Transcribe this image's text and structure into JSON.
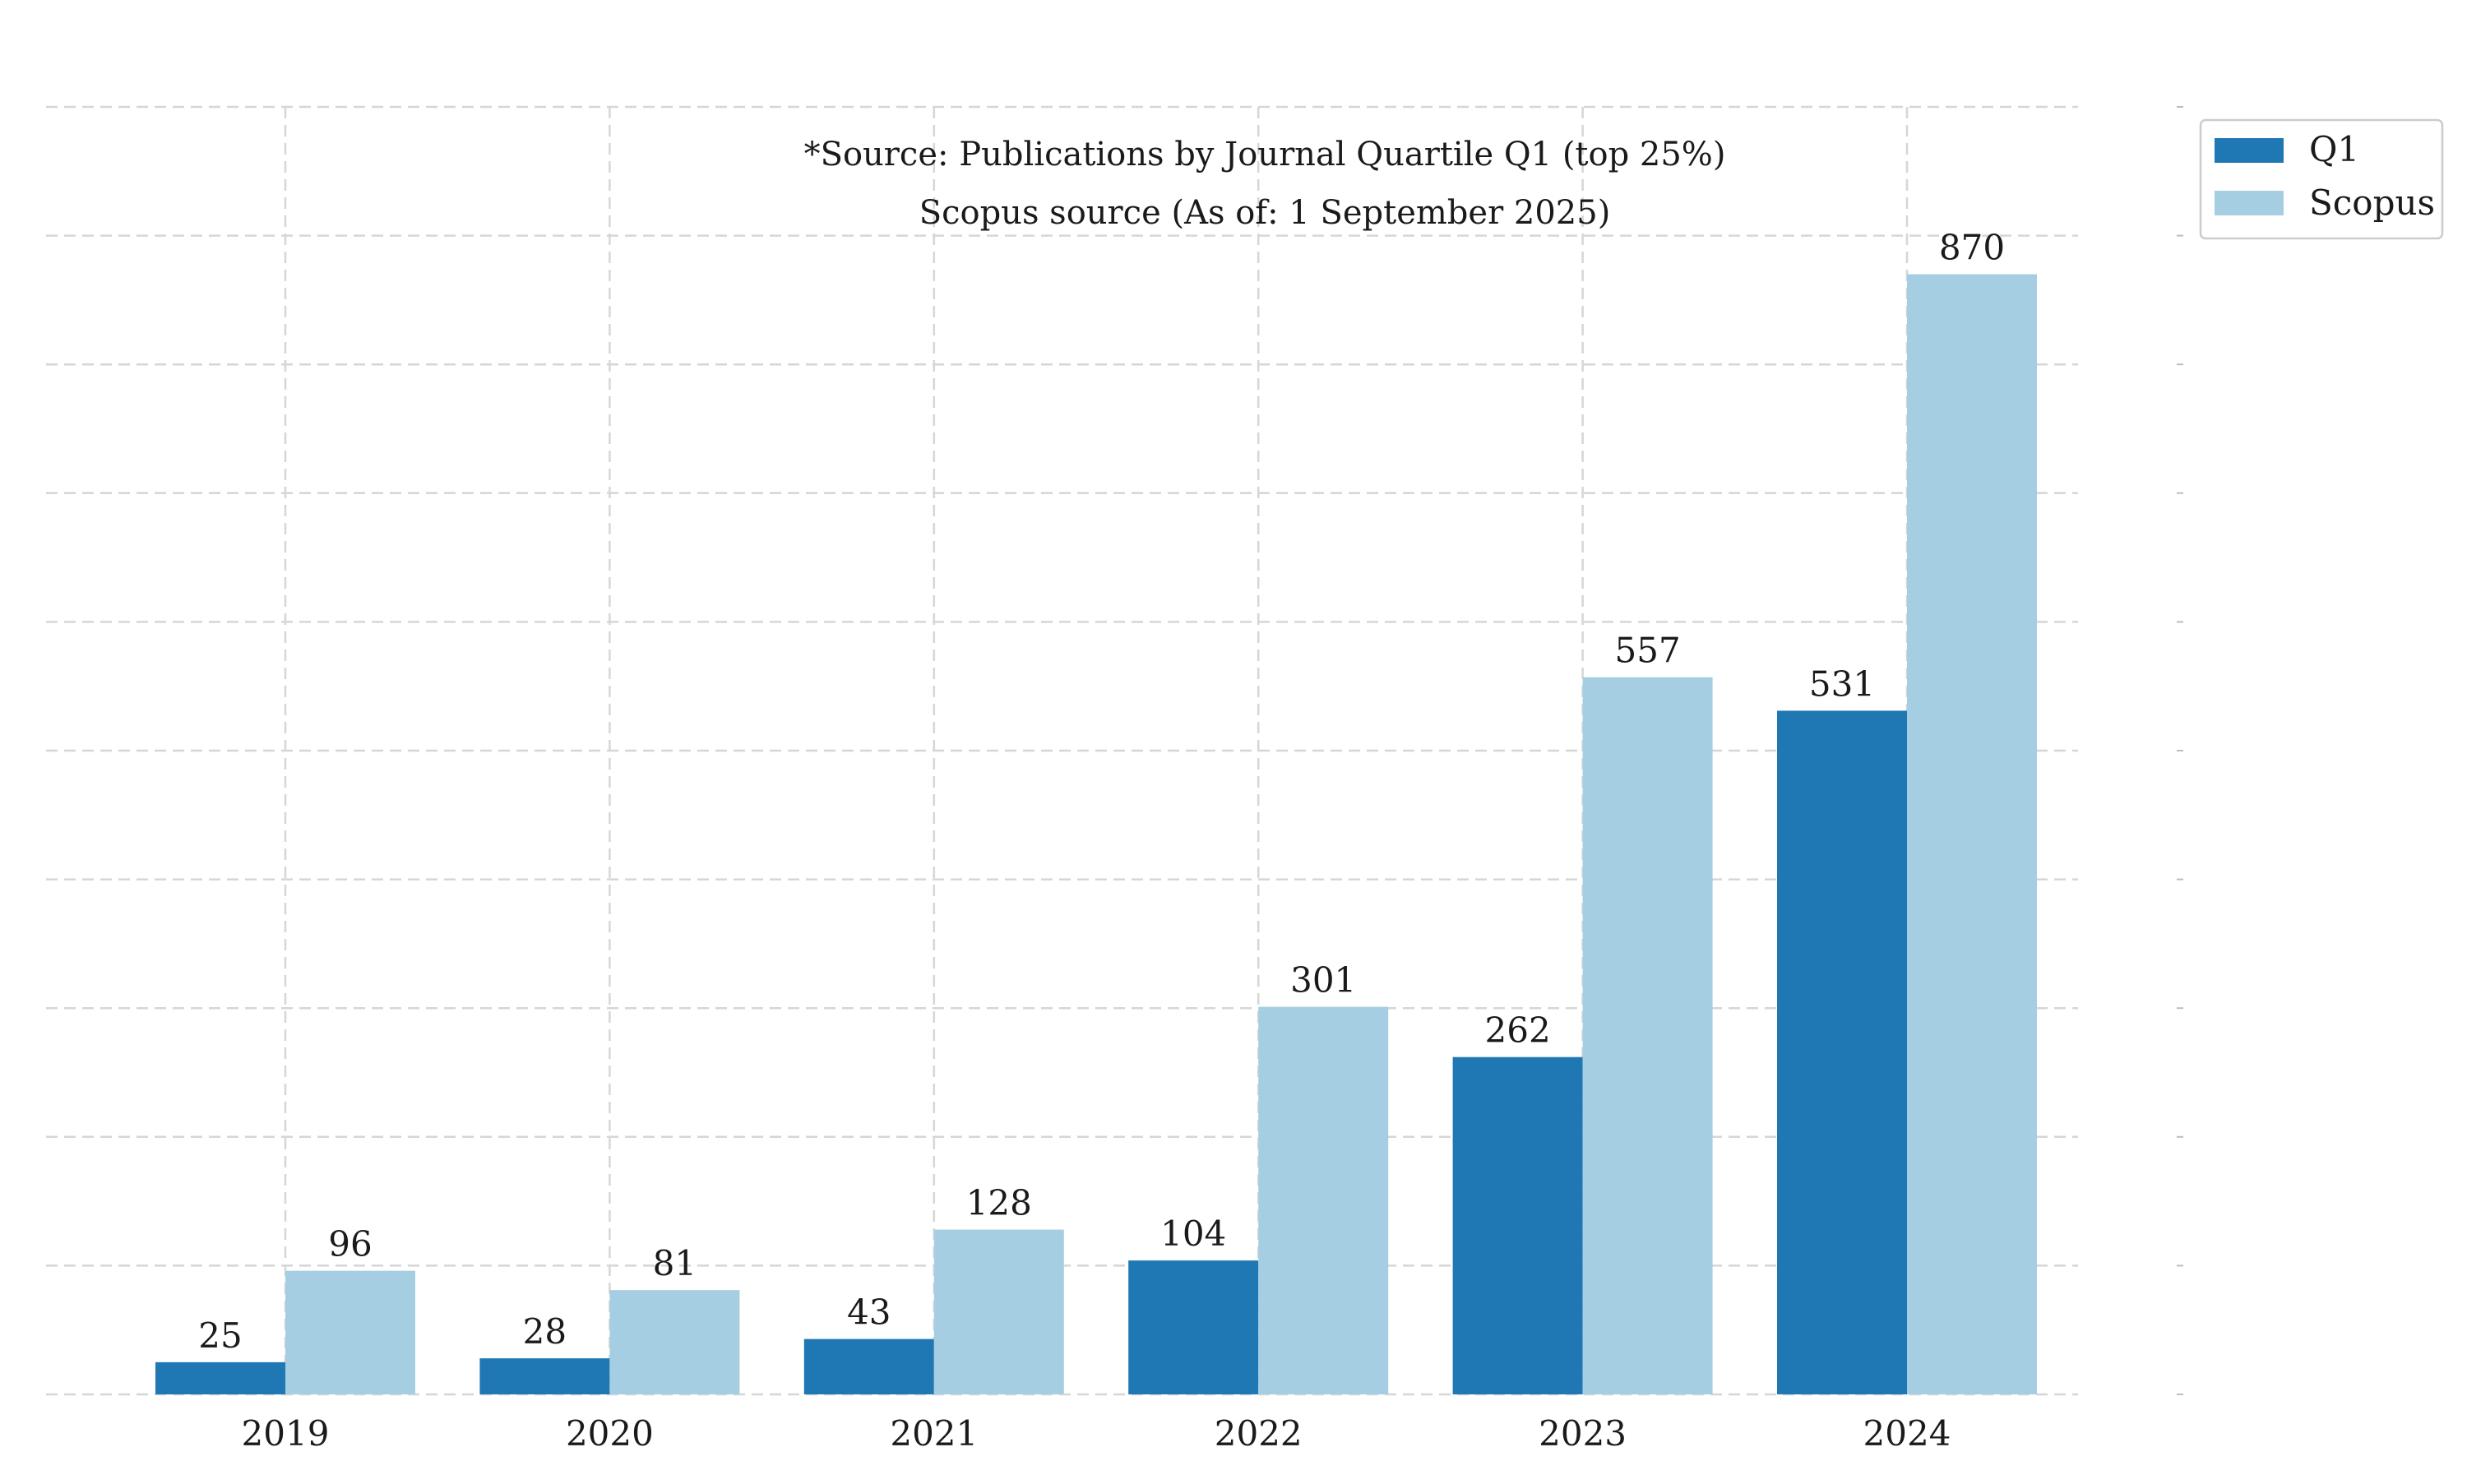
{
  "notes": {
    "line1": "*Source: Publications by Journal Quartile Q1 (top 25%)",
    "line2": "Scopus source (As of: 1 September 2025)"
  },
  "chart_data": {
    "type": "bar",
    "categories": [
      "2019",
      "2020",
      "2021",
      "2022",
      "2023",
      "2024"
    ],
    "series": [
      {
        "name": "Q1",
        "color": "#1f77b4",
        "values": [
          25,
          28,
          43,
          104,
          262,
          531
        ]
      },
      {
        "name": "Scopus",
        "color": "#a6cee3",
        "values": [
          96,
          81,
          128,
          301,
          557,
          870
        ]
      }
    ],
    "ylim": [
      0,
      1000
    ],
    "grid": true,
    "y_tick_labels_shown": false,
    "legend": {
      "position": "top-right"
    }
  }
}
